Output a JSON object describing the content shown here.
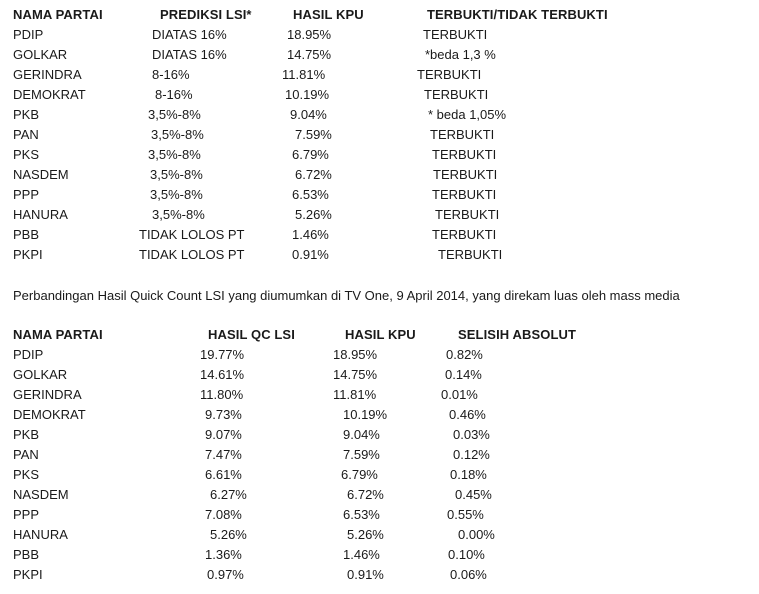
{
  "table1": {
    "headers": [
      "NAMA PARTAI",
      "PREDIKSI LSI*",
      "HASIL KPU",
      "TERBUKTI/TIDAK TERBUKTI"
    ],
    "rows": [
      [
        "PDIP",
        "DIATAS 16%",
        "18.95%",
        "TERBUKTI"
      ],
      [
        "GOLKAR",
        "DIATAS 16%",
        "14.75%",
        "*beda 1,3 %"
      ],
      [
        "GERINDRA",
        "8-16%",
        "11.81%",
        "TERBUKTI"
      ],
      [
        "DEMOKRAT",
        "8-16%",
        "10.19%",
        "TERBUKTI"
      ],
      [
        "PKB",
        "3,5%-8%",
        "9.04%",
        "* beda 1,05%"
      ],
      [
        "PAN",
        "3,5%-8%",
        "7.59%",
        "TERBUKTI"
      ],
      [
        "PKS",
        "3,5%-8%",
        "6.79%",
        "TERBUKTI"
      ],
      [
        "NASDEM",
        "3,5%-8%",
        "6.72%",
        "TERBUKTI"
      ],
      [
        "PPP",
        "3,5%-8%",
        "6.53%",
        "TERBUKTI"
      ],
      [
        "HANURA",
        "3,5%-8%",
        "5.26%",
        "TERBUKTI"
      ],
      [
        "PBB",
        "TIDAK LOLOS PT",
        "1.46%",
        "TERBUKTI"
      ],
      [
        "PKPI",
        "TIDAK LOLOS PT",
        "0.91%",
        "TERBUKTI"
      ]
    ]
  },
  "caption": "Perbandingan Hasil Quick Count LSI yang diumumkan di TV One, 9 April 2014, yang direkam luas oleh mass media",
  "table2": {
    "headers": [
      "NAMA PARTAI",
      "HASIL QC LSI",
      "HASIL KPU",
      "SELISIH ABSOLUT"
    ],
    "rows": [
      [
        "PDIP",
        "19.77%",
        "18.95%",
        "0.82%"
      ],
      [
        "GOLKAR",
        "14.61%",
        "14.75%",
        "0.14%"
      ],
      [
        "GERINDRA",
        "11.80%",
        "11.81%",
        "0.01%"
      ],
      [
        "DEMOKRAT",
        "9.73%",
        "10.19%",
        "0.46%"
      ],
      [
        "PKB",
        "9.07%",
        "9.04%",
        "0.03%"
      ],
      [
        "PAN",
        "7.47%",
        "7.59%",
        "0.12%"
      ],
      [
        "PKS",
        "6.61%",
        "6.79%",
        "0.18%"
      ],
      [
        "NASDEM",
        "6.27%",
        "6.72%",
        "0.45%"
      ],
      [
        "PPP",
        "7.08%",
        "6.53%",
        "0.55%"
      ],
      [
        "HANURA",
        "5.26%",
        "5.26%",
        "0.00%"
      ],
      [
        "PBB",
        "1.36%",
        "1.46%",
        "0.10%"
      ],
      [
        "PKPI",
        "0.97%",
        "0.91%",
        "0.06%"
      ]
    ]
  }
}
